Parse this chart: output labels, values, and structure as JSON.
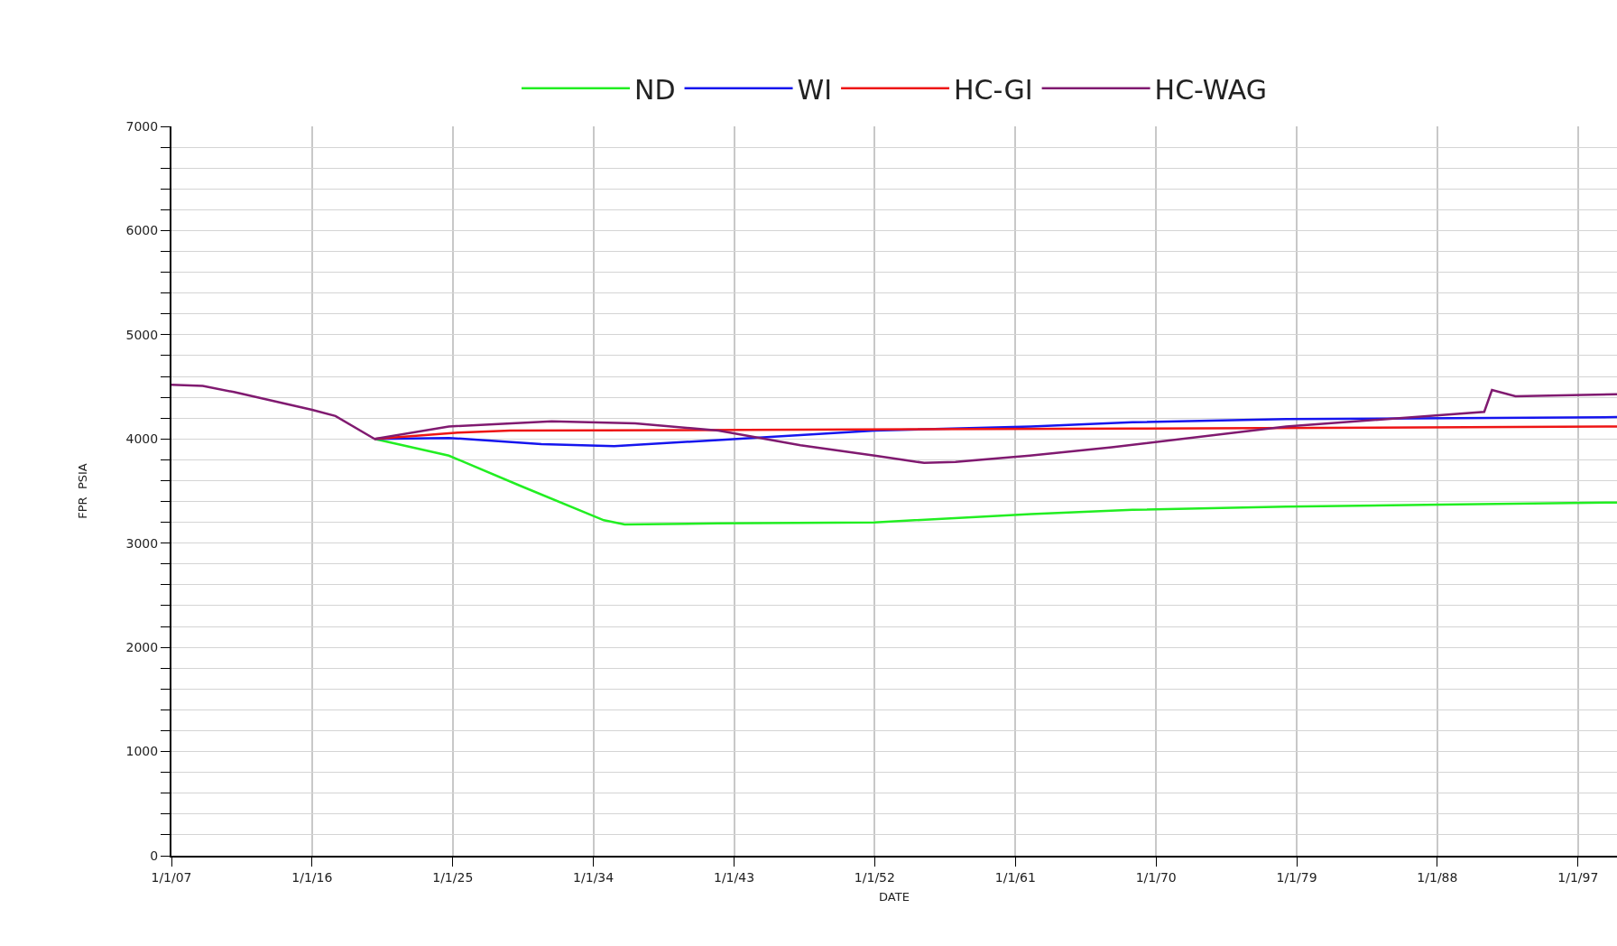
{
  "chart_data": {
    "type": "line",
    "xlabel": "DATE",
    "ylabel": "FPR  PSIA",
    "xlim": [
      "2007-01-01",
      "2099-07-01"
    ],
    "xticks": [
      {
        "value": "2007-01-01",
        "label": "1/1/07"
      },
      {
        "value": "2016-01-01",
        "label": "1/1/16"
      },
      {
        "value": "2025-01-01",
        "label": "1/1/25"
      },
      {
        "value": "2034-01-01",
        "label": "1/1/34"
      },
      {
        "value": "2043-01-01",
        "label": "1/1/43"
      },
      {
        "value": "2052-01-01",
        "label": "1/1/52"
      },
      {
        "value": "2061-01-01",
        "label": "1/1/61"
      },
      {
        "value": "2070-01-01",
        "label": "1/1/70"
      },
      {
        "value": "2079-01-01",
        "label": "1/1/79"
      },
      {
        "value": "2088-01-01",
        "label": "1/1/88"
      },
      {
        "value": "2097-01-01",
        "label": "1/1/97"
      }
    ],
    "ylim": [
      0,
      7000
    ],
    "yticks": [
      0,
      {
        "value": 200,
        "label": null
      },
      {
        "value": 400,
        "label": null
      },
      {
        "value": 600,
        "label": null
      },
      {
        "value": 800,
        "label": null
      },
      1000,
      {
        "value": 1200,
        "label": null
      },
      {
        "value": 1400,
        "label": null
      },
      {
        "value": 1600,
        "label": null
      },
      {
        "value": 1800,
        "label": null
      },
      2000,
      {
        "value": 2200,
        "label": null
      },
      {
        "value": 2400,
        "label": null
      },
      {
        "value": 2600,
        "label": null
      },
      {
        "value": 2800,
        "label": null
      },
      3000,
      {
        "value": 3200,
        "label": null
      },
      {
        "value": 3400,
        "label": null
      },
      {
        "value": 3600,
        "label": null
      },
      {
        "value": 3800,
        "label": null
      },
      4000,
      {
        "value": 4200,
        "label": null
      },
      {
        "value": 4400,
        "label": null
      },
      {
        "value": 4600,
        "label": null
      },
      {
        "value": 4800,
        "label": null
      },
      5000,
      {
        "value": 5200,
        "label": null
      },
      {
        "value": 5400,
        "label": null
      },
      {
        "value": 5600,
        "label": null
      },
      {
        "value": 5800,
        "label": null
      },
      6000,
      {
        "value": 6200,
        "label": null
      },
      {
        "value": 6400,
        "label": null
      },
      {
        "value": 6600,
        "label": null
      },
      {
        "value": 6800,
        "label": null
      },
      7000
    ],
    "grid": true,
    "legend": "top",
    "marker": "none",
    "line_style": "solid",
    "series": [
      {
        "name": "ND",
        "color": "#22ee22",
        "x": [
          "2020-01",
          "2024-10",
          "2029-05",
          "2034-09",
          "2036-01",
          "2042-01",
          "2052-01",
          "2062-01",
          "2068-07",
          "2078-05",
          "2088-05",
          "2099-07"
        ],
        "values": [
          4000,
          3840,
          3550,
          3220,
          3180,
          3190,
          3200,
          3280,
          3320,
          3350,
          3370,
          3390
        ]
      },
      {
        "name": "WI",
        "color": "#1515ee",
        "x": [
          "2020-01",
          "2024-10",
          "2030-09",
          "2035-05",
          "2042-01",
          "2052-01",
          "2062-01",
          "2068-07",
          "2078-05",
          "2099-07"
        ],
        "values": [
          4000,
          4010,
          3950,
          3930,
          3990,
          4080,
          4120,
          4160,
          4190,
          4210
        ]
      },
      {
        "name": "HC-GI",
        "color": "#ee1515",
        "x": [
          "2020-01",
          "2025-05",
          "2028-09",
          "2068-07",
          "2087-01",
          "2099-07"
        ],
        "values": [
          4000,
          4060,
          4080,
          4100,
          4110,
          4120
        ]
      },
      {
        "name": "HC-WAG",
        "color": "#801a70",
        "x": [
          "2007-01",
          "2009-01",
          "2011-01",
          "2016-01",
          "2017-07",
          "2020-01",
          "2024-10",
          "2031-05",
          "2036-09",
          "2042-01",
          "2047-04",
          "2052-01",
          "2055-03",
          "2057-03",
          "2061-12",
          "2067-03",
          "2078-05",
          "2091-01",
          "2091-07",
          "2093-01",
          "2099-07"
        ],
        "values": [
          4520,
          4510,
          4450,
          4280,
          4220,
          4000,
          4120,
          4170,
          4150,
          4080,
          3940,
          3840,
          3770,
          3780,
          3840,
          3920,
          4120,
          4260,
          4470,
          4410,
          4430
        ]
      }
    ]
  }
}
